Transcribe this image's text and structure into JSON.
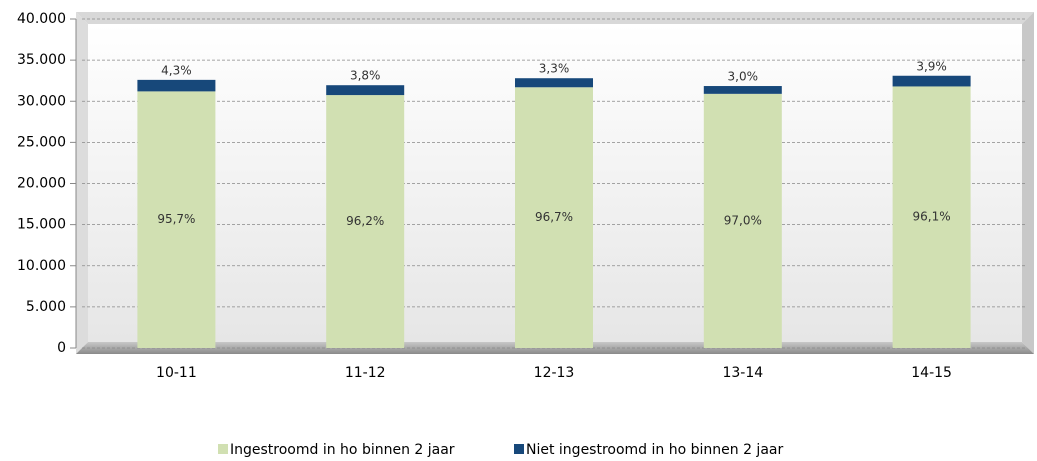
{
  "chart_data": {
    "type": "stacked_bar",
    "categories": [
      "10-11",
      "11-12",
      "12-13",
      "13-14",
      "14-15"
    ],
    "series": [
      {
        "name": "Ingestroomd in ho binnen 2 jaar",
        "color": "#d1e0b2",
        "values": [
          31200,
          30750,
          31700,
          30900,
          31800
        ],
        "labels": [
          "95,7%",
          "96,2%",
          "96,7%",
          "97,0%",
          "96,1%"
        ]
      },
      {
        "name": "Niet ingestroomd in ho binnen 2 jaar",
        "color": "#17487a",
        "values": [
          1400,
          1200,
          1100,
          950,
          1300
        ],
        "labels": [
          "4,3%",
          "3,8%",
          "3,3%",
          "3,0%",
          "3,9%"
        ]
      }
    ],
    "ylim": [
      0,
      40000
    ],
    "yticks": [
      0,
      {
        "value": 5000,
        "label": "5.000"
      },
      {
        "value": 10000,
        "label": "10.000"
      },
      {
        "value": 15000,
        "label": "15.000"
      },
      {
        "value": 20000,
        "label": "20.000"
      },
      {
        "value": 25000,
        "label": "25.000"
      },
      {
        "value": 30000,
        "label": "30.000"
      },
      {
        "value": 35000,
        "label": "35.000"
      },
      {
        "value": 40000,
        "label": "40.000"
      }
    ],
    "grid": true,
    "legend": "bottom"
  }
}
